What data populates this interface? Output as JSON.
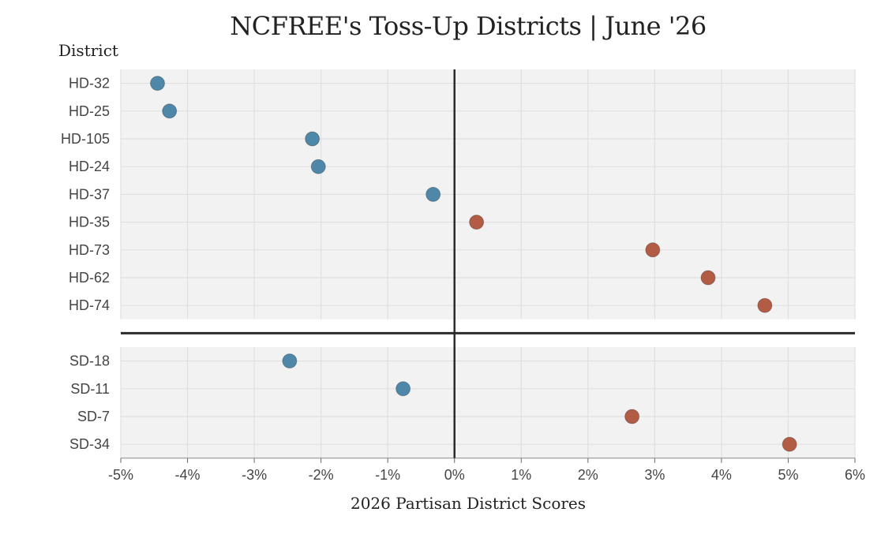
{
  "chart_data": {
    "type": "scatter",
    "title": "NCFREE's Toss-Up Districts | June '26",
    "xlabel": "2026 Partisan District Scores",
    "ylabel": "District",
    "xlim": [
      -5,
      6
    ],
    "x_ticks": [
      "-5%",
      "-4%",
      "-3%",
      "-2%",
      "-1%",
      "0%",
      "1%",
      "2%",
      "3%",
      "4%",
      "5%",
      "6%"
    ],
    "grid": true,
    "groups": [
      {
        "points": [
          {
            "district": "HD-32",
            "score": -4.45
          },
          {
            "district": "HD-25",
            "score": -4.27
          },
          {
            "district": "HD-105",
            "score": -2.13
          },
          {
            "district": "HD-24",
            "score": -2.04
          },
          {
            "district": "HD-37",
            "score": -0.32
          },
          {
            "district": "HD-35",
            "score": 0.33
          },
          {
            "district": "HD-73",
            "score": 2.97
          },
          {
            "district": "HD-62",
            "score": 3.8
          },
          {
            "district": "HD-74",
            "score": 4.65
          }
        ]
      },
      {
        "points": [
          {
            "district": "SD-18",
            "score": -2.47
          },
          {
            "district": "SD-11",
            "score": -0.77
          },
          {
            "district": "SD-7",
            "score": 2.66
          },
          {
            "district": "SD-34",
            "score": 5.02
          }
        ]
      }
    ],
    "colors": {
      "negative": "#4f87a8",
      "positive": "#b25c45",
      "panel": "#f2f2f2",
      "grid": "#e0e0e0",
      "zero_line": "#2b2b2b"
    }
  }
}
